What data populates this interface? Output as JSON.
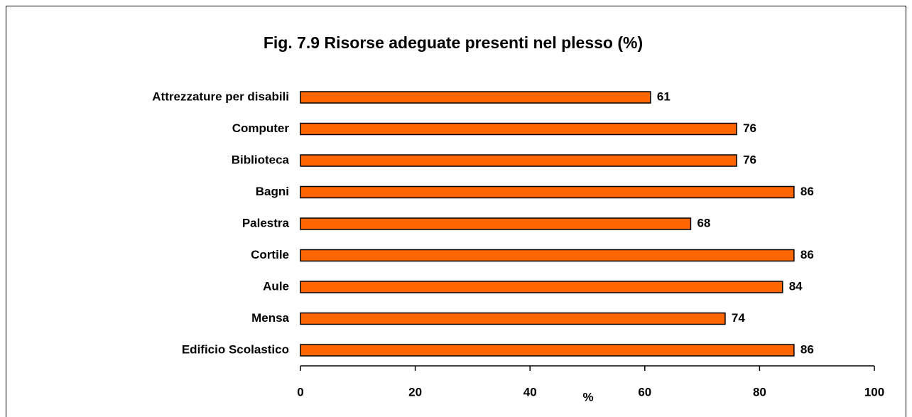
{
  "chart_data": {
    "type": "barh",
    "title": "Fig. 7.9 Risorse adeguate presenti nel plesso (%)",
    "x_label": "%",
    "categories": [
      "Attrezzature per disabili",
      "Computer",
      "Biblioteca",
      "Bagni",
      "Palestra",
      "Cortile",
      "Aule",
      "Mensa",
      "Edificio Scolastico"
    ],
    "values": [
      61,
      76,
      76,
      86,
      68,
      86,
      84,
      74,
      86
    ],
    "color": "#ff6600",
    "xlim": [
      0,
      100
    ],
    "xticks": [
      0,
      20,
      40,
      60,
      80,
      100
    ],
    "grid": false
  }
}
